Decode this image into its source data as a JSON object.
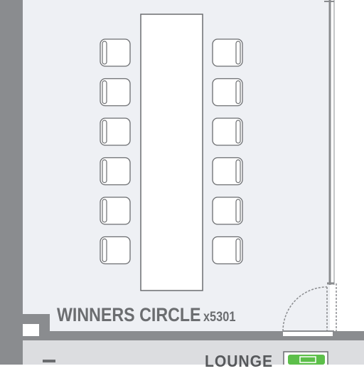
{
  "rooms": {
    "main": {
      "name": "WINNERS CIRCLE",
      "extension": "x5301"
    },
    "adjacent": {
      "name": "LOUNGE"
    }
  },
  "furniture": {
    "table_count": 1,
    "chairs_per_side": 6
  },
  "colors": {
    "wall": "#8a8c8f",
    "floor": "#eef0f4",
    "lounge_floor": "#dcdde0",
    "text": "#6b6d70",
    "accent": "#5cbf4a"
  },
  "icons": [
    "door-swing-icon",
    "exit-sign-icon"
  ]
}
